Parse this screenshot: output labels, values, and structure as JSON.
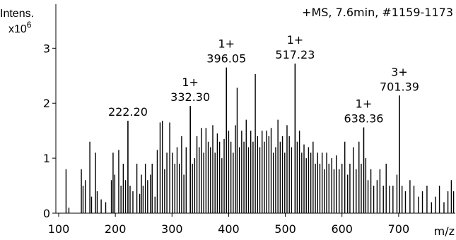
{
  "chart_data": {
    "type": "spectrum",
    "title": "+MS, 7.6min, #1159-1173",
    "y_label": "Intens.",
    "y_scale_base": "x10",
    "y_scale_power": "6",
    "x_label": "m/z",
    "color": "#000000",
    "xlim": [
      95,
      800
    ],
    "xticks": [
      100,
      200,
      300,
      400,
      500,
      600,
      700
    ],
    "ylim": [
      0,
      3.8
    ],
    "yticks": [
      0,
      1,
      2,
      3
    ],
    "x": [
      113,
      118,
      140,
      143,
      147,
      155,
      158,
      165,
      168,
      175,
      183,
      193,
      196,
      199,
      206,
      210,
      214,
      218,
      226,
      231,
      238,
      243,
      246,
      249,
      253,
      257,
      262,
      265,
      270,
      274,
      279,
      283,
      287,
      291,
      296,
      301,
      305,
      309,
      313,
      317,
      321,
      325,
      336,
      340,
      344,
      348,
      352,
      356,
      360,
      364,
      368,
      372,
      376,
      380,
      384,
      388,
      392,
      400,
      404,
      408,
      412,
      415,
      419,
      423,
      427,
      431,
      435,
      439,
      443,
      447,
      451,
      455,
      459,
      463,
      467,
      471,
      475,
      479,
      483,
      487,
      491,
      495,
      499,
      503,
      507,
      511,
      521,
      525,
      529,
      533,
      537,
      541,
      545,
      549,
      553,
      557,
      561,
      565,
      569,
      573,
      577,
      582,
      586,
      590,
      595,
      600,
      605,
      610,
      614,
      620,
      625,
      630,
      634,
      642,
      646,
      651,
      656,
      662,
      667,
      673,
      678,
      684,
      690,
      697,
      706,
      712,
      720,
      727,
      735,
      742,
      750,
      758,
      765,
      772,
      780,
      787,
      793,
      797
    ],
    "values": [
      0.8,
      0.1,
      0.8,
      0.5,
      0.6,
      1.3,
      0.3,
      1.1,
      0.4,
      0.25,
      0.2,
      0.6,
      1.1,
      0.7,
      1.15,
      0.5,
      0.9,
      0.6,
      0.5,
      0.4,
      0.9,
      0.35,
      0.7,
      0.5,
      0.9,
      0.6,
      0.7,
      0.9,
      0.3,
      1.15,
      1.65,
      1.68,
      0.8,
      1.1,
      1.65,
      1.1,
      0.9,
      1.2,
      0.9,
      1.4,
      0.7,
      1.2,
      0.9,
      1.0,
      1.4,
      1.2,
      1.55,
      1.1,
      1.55,
      1.3,
      1.2,
      1.6,
      1.1,
      1.45,
      1.3,
      1.0,
      1.35,
      1.5,
      1.3,
      1.1,
      1.6,
      2.28,
      1.2,
      1.5,
      1.3,
      1.7,
      1.2,
      1.5,
      1.3,
      2.53,
      1.4,
      1.2,
      1.5,
      1.3,
      1.5,
      1.4,
      1.55,
      1.1,
      1.2,
      1.7,
      1.3,
      1.4,
      1.1,
      1.6,
      1.4,
      1.2,
      1.3,
      1.5,
      1.1,
      1.25,
      1.0,
      1.2,
      1.1,
      1.3,
      0.9,
      1.1,
      0.9,
      1.1,
      0.8,
      1.1,
      0.9,
      1.0,
      0.8,
      1.05,
      0.8,
      0.9,
      1.3,
      0.7,
      0.9,
      1.2,
      0.8,
      1.3,
      0.9,
      1.0,
      0.6,
      0.8,
      0.5,
      0.6,
      0.8,
      0.5,
      0.9,
      0.5,
      0.5,
      0.7,
      0.5,
      0.4,
      0.6,
      0.5,
      0.3,
      0.4,
      0.5,
      0.2,
      0.3,
      0.5,
      0.2,
      0.4,
      0.6,
      0.4
    ],
    "annotations": [
      {
        "x": 222.2,
        "y": 1.68,
        "label": "222.20"
      },
      {
        "x": 332.3,
        "y": 1.95,
        "label": "332.30",
        "charge": "1+"
      },
      {
        "x": 396.05,
        "y": 2.65,
        "label": "396.05",
        "charge": "1+"
      },
      {
        "x": 517.23,
        "y": 2.72,
        "label": "517.23",
        "charge": "1+"
      },
      {
        "x": 638.36,
        "y": 1.56,
        "label": "638.36",
        "charge": "1+"
      },
      {
        "x": 701.39,
        "y": 2.14,
        "label": "701.39",
        "charge": "3+"
      }
    ]
  }
}
